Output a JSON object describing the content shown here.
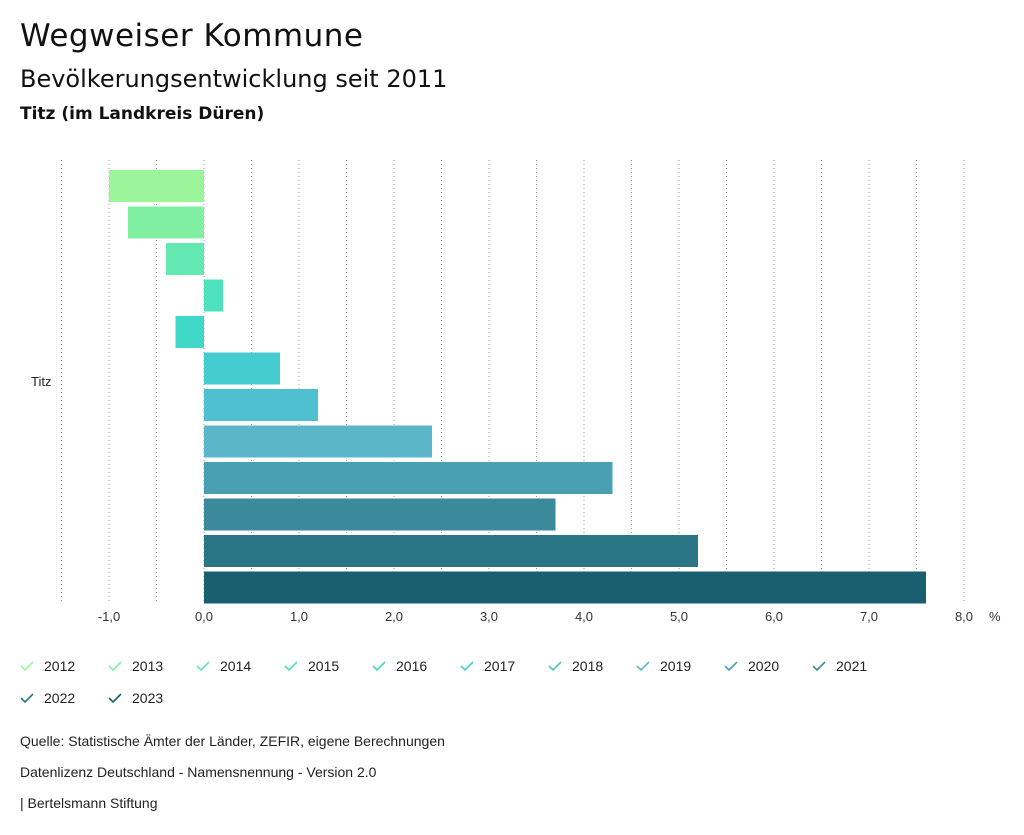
{
  "header": {
    "title": "Wegweiser Kommune",
    "subtitle": "Bevölkerungsentwicklung seit 2011",
    "region": "Titz (im Landkreis Düren)"
  },
  "chart_data": {
    "type": "bar",
    "orientation": "horizontal",
    "category": "Titz",
    "unit": "%",
    "xlim": [
      -1.5,
      8.0
    ],
    "ticks": [
      "-1,0",
      "0,0",
      "1,0",
      "2,0",
      "3,0",
      "4,0",
      "5,0",
      "6,0",
      "7,0",
      "8,0"
    ],
    "tick_values": [
      -1,
      0,
      1,
      2,
      3,
      4,
      5,
      6,
      7,
      8
    ],
    "series": [
      {
        "name": "2012",
        "value": -1.0,
        "color": "#9cf59a"
      },
      {
        "name": "2013",
        "value": -0.8,
        "color": "#80efa2"
      },
      {
        "name": "2014",
        "value": -0.4,
        "color": "#62e8b0"
      },
      {
        "name": "2015",
        "value": 0.2,
        "color": "#4ee1bd"
      },
      {
        "name": "2016",
        "value": -0.3,
        "color": "#40d8c6"
      },
      {
        "name": "2017",
        "value": 0.8,
        "color": "#44cdd1"
      },
      {
        "name": "2018",
        "value": 1.2,
        "color": "#4fc0d0"
      },
      {
        "name": "2019",
        "value": 2.4,
        "color": "#5bb6ca"
      },
      {
        "name": "2020",
        "value": 4.3,
        "color": "#4aa0b3"
      },
      {
        "name": "2021",
        "value": 3.7,
        "color": "#3a8a9c"
      },
      {
        "name": "2022",
        "value": 5.2,
        "color": "#2a7586"
      },
      {
        "name": "2023",
        "value": 7.6,
        "color": "#1a5f70"
      }
    ]
  },
  "footer": {
    "source": "Quelle: Statistische Ämter der Länder, ZEFIR, eigene Berechnungen",
    "license": "Datenlizenz Deutschland - Namensnennung - Version 2.0",
    "publisher": "| Bertelsmann Stiftung"
  }
}
